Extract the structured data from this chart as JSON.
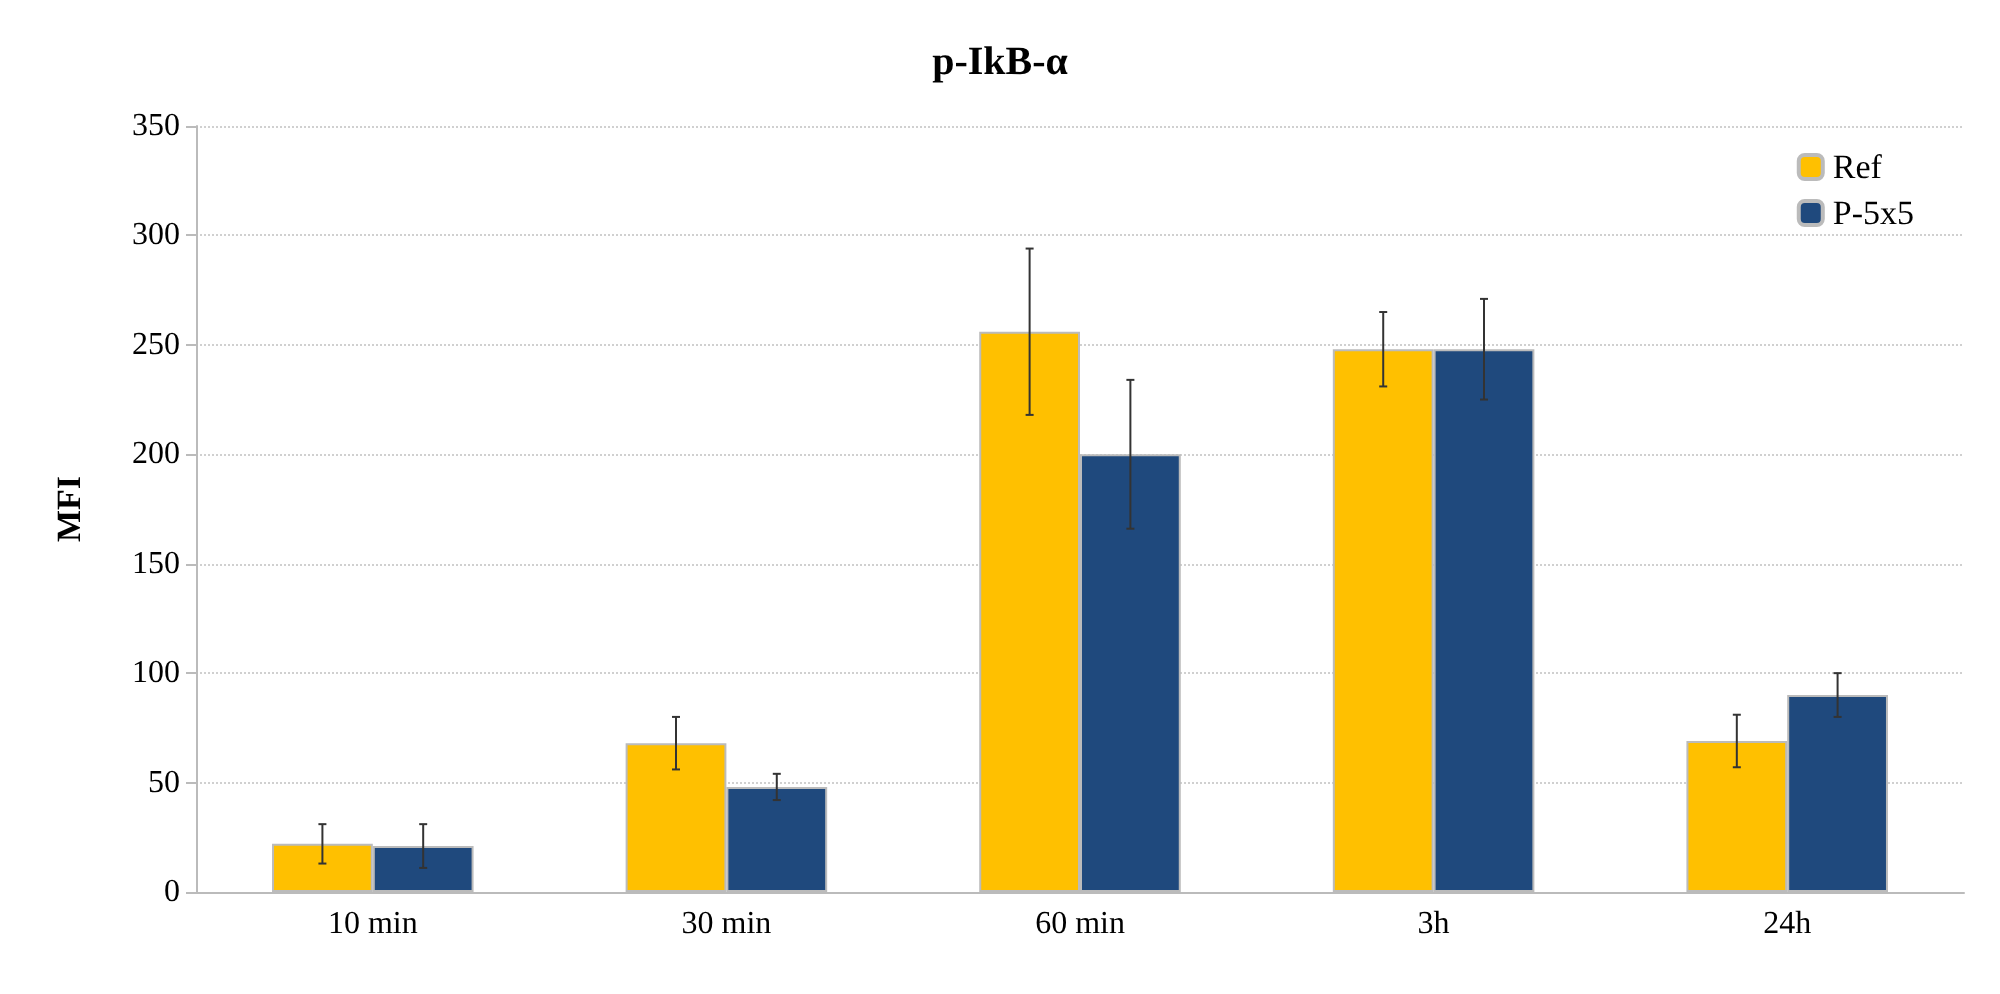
{
  "chart_data": {
    "type": "bar",
    "title": "p-IkB-α",
    "ylabel": "MFI",
    "categories": [
      "10 min",
      "30 min",
      "60 min",
      "3h",
      "24h"
    ],
    "series": [
      {
        "name": "Ref",
        "color": "#ffc000",
        "values": [
          22,
          68,
          256,
          248,
          69
        ],
        "errors": [
          9,
          12,
          38,
          17,
          12
        ]
      },
      {
        "name": "P-5x5",
        "color": "#1f497d",
        "values": [
          21,
          48,
          200,
          248,
          90
        ],
        "errors": [
          10,
          6,
          34,
          23,
          10
        ]
      }
    ],
    "ylim": [
      0,
      350
    ],
    "yticks": [
      0,
      50,
      100,
      150,
      200,
      250,
      300,
      350
    ],
    "grid": "y",
    "legend": "top right"
  }
}
